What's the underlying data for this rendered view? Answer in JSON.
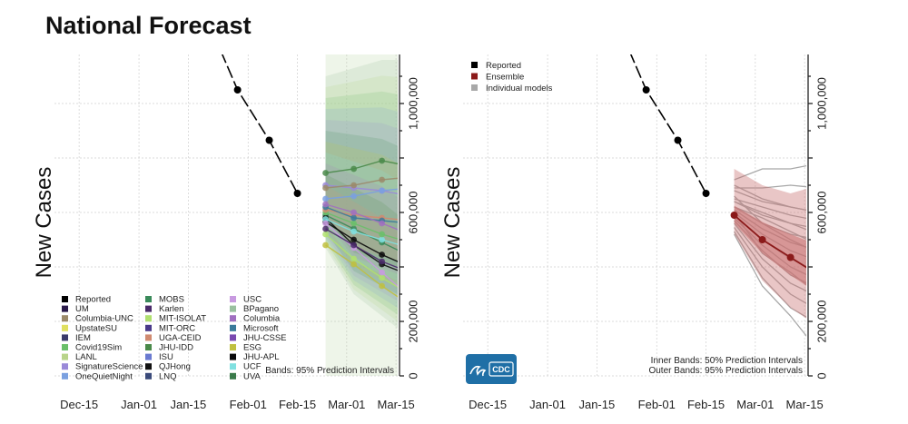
{
  "title": "National Forecast",
  "colors": {
    "reported": "#000000",
    "ensemble": "#8b1a1a",
    "ensemble_band": "#c87070",
    "individual": "#a8a8a8",
    "cdc_logo": "#1f6fa6"
  },
  "logo": {
    "text": "CDC",
    "icon": "cdc-logo-icon"
  },
  "chart_data": [
    {
      "type": "line",
      "ylabel": "New Cases",
      "xlabel": "",
      "x_ticks": [
        "Dec-15",
        "Jan-01",
        "Jan-15",
        "Feb-01",
        "Feb-15",
        "Mar-01",
        "Mar-15"
      ],
      "x_tick_days": [
        0,
        17,
        31,
        48,
        62,
        76,
        90
      ],
      "xlim": [
        -7,
        91
      ],
      "y_ticks": [
        0,
        200000,
        400000,
        600000,
        800000,
        1000000
      ],
      "y_tick_labels": [
        "0",
        "200,000",
        "",
        "600,000",
        "",
        "1,000,000"
      ],
      "ylim": [
        0,
        1180000
      ],
      "footnote": "Bands: 95% Prediction Intervals",
      "legend": {
        "placement": "bottom-left",
        "columns": [
          [
            {
              "name": "Reported",
              "color": "#000000"
            },
            {
              "name": "UM",
              "color": "#2a1a4a"
            },
            {
              "name": "Columbia-UNC",
              "color": "#9b8a6a"
            },
            {
              "name": "UpstateSU",
              "color": "#e0e060"
            },
            {
              "name": "IEM",
              "color": "#3a3a6a"
            },
            {
              "name": "Covid19Sim",
              "color": "#6abf6a"
            },
            {
              "name": "LANL",
              "color": "#b8d48a"
            },
            {
              "name": "SignatureScience",
              "color": "#9a8ad8"
            },
            {
              "name": "OneQuietNight",
              "color": "#7aa0e0"
            }
          ],
          [
            {
              "name": "MOBS",
              "color": "#3a8a5a"
            },
            {
              "name": "Karlen",
              "color": "#4a2a6a"
            },
            {
              "name": "MIT-ISOLAT",
              "color": "#b0e070"
            },
            {
              "name": "MIT-ORC",
              "color": "#4a3a8a"
            },
            {
              "name": "UGA-CEID",
              "color": "#d08a70"
            },
            {
              "name": "JHU-IDD",
              "color": "#4a8a4a"
            },
            {
              "name": "ISU",
              "color": "#6a7ad0"
            },
            {
              "name": "QJHong",
              "color": "#101010"
            },
            {
              "name": "LNQ",
              "color": "#3a4a7a"
            }
          ],
          [
            {
              "name": "USC",
              "color": "#c89ae0"
            },
            {
              "name": "BPagano",
              "color": "#9ac0a0"
            },
            {
              "name": "Columbia",
              "color": "#a070c0"
            },
            {
              "name": "Microsoft",
              "color": "#3a7a9a"
            },
            {
              "name": "JHU-CSSE",
              "color": "#7a4ab0"
            },
            {
              "name": "ESG",
              "color": "#c0c040"
            },
            {
              "name": "JHU-APL",
              "color": "#0a0a0a"
            },
            {
              "name": "UCF",
              "color": "#80e0e0"
            },
            {
              "name": "UVA",
              "color": "#3a7a4a"
            }
          ]
        ]
      },
      "reported": {
        "name": "Reported",
        "x_days": [
          37,
          45,
          54,
          62
        ],
        "values": [
          1290000,
          1050000,
          865000,
          670000
        ]
      },
      "forecast_days": [
        70,
        78,
        86,
        94
      ],
      "model_trajectories": [
        {
          "color": "#3a8a5a",
          "values": [
            590000,
            540000,
            490000,
            440000
          ]
        },
        {
          "color": "#101010",
          "values": [
            580000,
            480000,
            410000,
            370000
          ]
        },
        {
          "color": "#0a0a0a",
          "values": [
            565000,
            500000,
            445000,
            400000
          ]
        },
        {
          "color": "#80e0e0",
          "values": [
            575000,
            530000,
            500000,
            470000
          ]
        },
        {
          "color": "#6abf6a",
          "values": [
            600000,
            560000,
            520000,
            490000
          ]
        },
        {
          "color": "#9a8ad8",
          "values": [
            700000,
            690000,
            680000,
            660000
          ]
        },
        {
          "color": "#9b8a6a",
          "values": [
            690000,
            700000,
            720000,
            730000
          ]
        },
        {
          "color": "#b0e070",
          "values": [
            520000,
            430000,
            360000,
            300000
          ]
        },
        {
          "color": "#c0c040",
          "values": [
            480000,
            410000,
            330000,
            260000
          ]
        },
        {
          "color": "#d08a70",
          "values": [
            610000,
            590000,
            580000,
            570000
          ]
        },
        {
          "color": "#7aa0e0",
          "values": [
            650000,
            660000,
            680000,
            690000
          ]
        },
        {
          "color": "#c89ae0",
          "values": [
            560000,
            470000,
            380000,
            290000
          ]
        },
        {
          "color": "#3a7a9a",
          "values": [
            620000,
            580000,
            570000,
            560000
          ]
        },
        {
          "color": "#4a8a4a",
          "values": [
            745000,
            760000,
            790000,
            770000
          ]
        },
        {
          "color": "#4a2a6a",
          "values": [
            540000,
            480000,
            420000,
            380000
          ]
        },
        {
          "color": "#a070c0",
          "values": [
            630000,
            600000,
            560000,
            520000
          ]
        }
      ],
      "band_lower": [
        470000,
        300000,
        220000,
        140000
      ],
      "band_upper": [
        1100000,
        1130000,
        1160000,
        1160000
      ]
    },
    {
      "type": "line",
      "ylabel": "New Cases",
      "xlabel": "",
      "x_ticks": [
        "Dec-15",
        "Jan-01",
        "Jan-15",
        "Feb-01",
        "Feb-15",
        "Mar-01",
        "Mar-15"
      ],
      "x_tick_days": [
        0,
        17,
        31,
        48,
        62,
        76,
        90
      ],
      "xlim": [
        -7,
        91
      ],
      "y_ticks": [
        0,
        200000,
        400000,
        600000,
        800000,
        1000000
      ],
      "y_tick_labels": [
        "0",
        "200,000",
        "",
        "600,000",
        "",
        "1,000,000"
      ],
      "ylim": [
        0,
        1180000
      ],
      "legend": {
        "placement": "top-left",
        "entries": [
          {
            "name": "Reported",
            "color": "#000000"
          },
          {
            "name": "Ensemble",
            "color": "#8b1a1a"
          },
          {
            "name": "Individual models",
            "color": "#a8a8a8"
          }
        ]
      },
      "footnote_lines": [
        "Inner Bands: 50% Prediction Intervals",
        "Outer Bands: 95% Prediction Intervals"
      ],
      "reported": {
        "name": "Reported",
        "x_days": [
          37,
          45,
          54,
          62
        ],
        "values": [
          1290000,
          1050000,
          865000,
          670000
        ]
      },
      "ensemble": {
        "name": "Ensemble",
        "x_days": [
          70,
          78,
          86,
          94
        ],
        "values": [
          590000,
          500000,
          435000,
          370000
        ],
        "inner_lower": [
          560000,
          450000,
          370000,
          300000
        ],
        "inner_upper": [
          625000,
          565000,
          520000,
          480000
        ],
        "outer_lower": [
          520000,
          350000,
          250000,
          180000
        ],
        "outer_upper": [
          760000,
          700000,
          670000,
          700000
        ]
      },
      "individual_models": [
        [
          720000,
          760000,
          760000,
          780000
        ],
        [
          690000,
          690000,
          700000,
          690000
        ],
        [
          680000,
          640000,
          620000,
          600000
        ],
        [
          650000,
          620000,
          590000,
          570000
        ],
        [
          640000,
          590000,
          560000,
          540000
        ],
        [
          620000,
          560000,
          520000,
          500000
        ],
        [
          610000,
          540000,
          490000,
          460000
        ],
        [
          600000,
          520000,
          460000,
          420000
        ],
        [
          590000,
          500000,
          430000,
          380000
        ],
        [
          580000,
          480000,
          400000,
          350000
        ],
        [
          570000,
          460000,
          370000,
          320000
        ],
        [
          560000,
          430000,
          340000,
          290000
        ],
        [
          545000,
          400000,
          300000,
          240000
        ],
        [
          530000,
          360000,
          250000,
          190000
        ],
        [
          520000,
          330000,
          220000,
          90000
        ],
        [
          600000,
          450000,
          380000,
          300000
        ],
        [
          620000,
          580000,
          530000,
          480000
        ],
        [
          640000,
          600000,
          560000,
          520000
        ],
        [
          700000,
          650000,
          620000,
          600000
        ],
        [
          660000,
          560000,
          500000,
          450000
        ]
      ]
    }
  ]
}
